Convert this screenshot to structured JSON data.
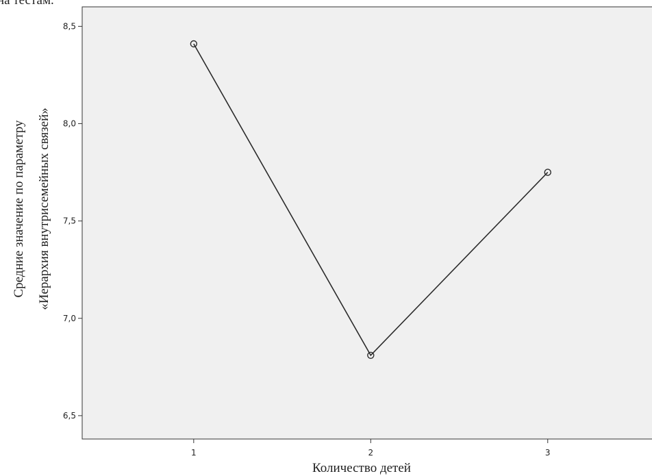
{
  "page": {
    "top_text_fragment": "на тестам."
  },
  "chart_data": {
    "type": "line",
    "x": [
      1,
      2,
      3
    ],
    "series": [
      {
        "values": [
          8.41,
          6.81,
          7.75
        ]
      }
    ],
    "xlabel": "Количество детей",
    "ylabel_line1": "Средние значение по параметру",
    "ylabel_line2": "«Иерархия внутрисемейных связей»",
    "xlim": [
      0.37,
      3.62
    ],
    "ylim": [
      6.38,
      8.6
    ],
    "x_ticks": [
      "1",
      "2",
      "3"
    ],
    "y_ticks": [
      "6,5",
      "7,0",
      "7,5",
      "8,0",
      "8,5"
    ],
    "y_tick_values": [
      6.5,
      7.0,
      7.5,
      8.0,
      8.5
    ],
    "grid": false,
    "legend": "none",
    "colors": {
      "plot_background": "#f0f0f0",
      "line": "#2b2b2b",
      "frame": "#333333"
    }
  }
}
